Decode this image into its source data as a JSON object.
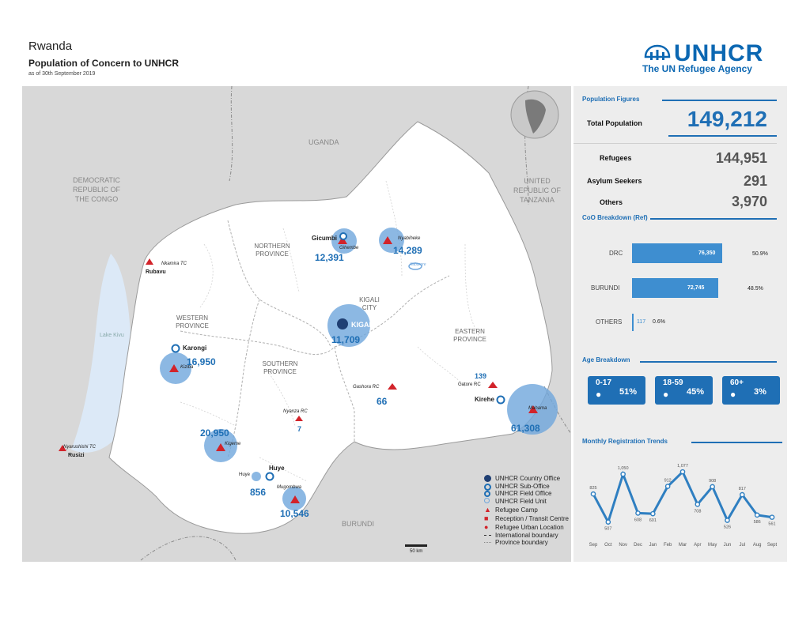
{
  "header": {
    "title": "Rwanda",
    "subtitle": "Population of Concern to UNHCR",
    "date": "as of 30th September 2019"
  },
  "logo": {
    "word": "UNHCR",
    "tagline": "The UN Refugee Agency"
  },
  "colors": {
    "brand": "#0b67b2",
    "accent": "#1f6fb5",
    "circle": "#6fa6dc",
    "camp": "#d2232a",
    "water": "#dce9f7"
  },
  "population_figures": {
    "title": "Population Figures",
    "total_label": "Total Population",
    "total_value": "149,212",
    "rows": [
      {
        "label": "Refugees",
        "value": "144,951"
      },
      {
        "label": "Asylum Seekers",
        "value": "291"
      },
      {
        "label": "Others",
        "value": "3,970"
      }
    ]
  },
  "coo": {
    "title": "CoO Breakdown (Ref)",
    "rows": [
      {
        "label": "DRC",
        "value": "76,350",
        "pct": "50.9%",
        "fraction": 0.509
      },
      {
        "label": "BURUNDI",
        "value": "72,745",
        "pct": "48.5%",
        "fraction": 0.485
      },
      {
        "label": "OTHERS",
        "value": "117",
        "pct": "0.6%",
        "fraction": 0.006
      }
    ]
  },
  "age": {
    "title": "Age Breakdown",
    "groups": [
      {
        "range": "0-17",
        "pct": "51%"
      },
      {
        "range": "18-59",
        "pct": "45%"
      },
      {
        "range": "60+",
        "pct": "3%"
      }
    ]
  },
  "trend": {
    "title": "Monthly Registration Trends"
  },
  "chart_data": {
    "type": "line",
    "title": "Monthly Registration Trends",
    "categories": [
      "Sep",
      "Oct",
      "Nov",
      "Dec",
      "Jan",
      "Feb",
      "Mar",
      "Apr",
      "May",
      "Jun",
      "Jul",
      "Aug",
      "Sept"
    ],
    "values": [
      825,
      507,
      1050,
      608,
      601,
      912,
      1077,
      708,
      908,
      526,
      817,
      586,
      561
    ],
    "labels": [
      "825",
      "507",
      "1,050",
      "608",
      "601",
      "912",
      "1,077",
      "708",
      "908",
      "526",
      "817",
      "586",
      "561"
    ],
    "ylim": [
      450,
      1150
    ],
    "grid": false
  },
  "map": {
    "countries": [
      {
        "name": "UGANDA"
      },
      {
        "name": "DEMOCRATIC REPUBLIC OF THE CONGO"
      },
      {
        "name": "UNITED REPUBLIC OF TANZANIA"
      },
      {
        "name": "BURUNDI"
      }
    ],
    "provinces": [
      {
        "name": "NORTHERN PROVINCE"
      },
      {
        "name": "WESTERN PROVINCE"
      },
      {
        "name": "KIGALI CITY"
      },
      {
        "name": "EASTERN PROVINCE"
      },
      {
        "name": "SOUTHERN PROVINCE"
      }
    ],
    "lake_label": "Lake Kivu",
    "places": [
      {
        "name": "Gicumbi"
      },
      {
        "name": "Gihembe"
      },
      {
        "name": "Nyabiheke"
      },
      {
        "name": "Kigali"
      },
      {
        "name": "Karongi"
      },
      {
        "name": "Kiziba"
      },
      {
        "name": "Rubavu"
      },
      {
        "name": "Nkamira TC"
      },
      {
        "name": "Kirehe"
      },
      {
        "name": "Mahama"
      },
      {
        "name": "Gatore RC"
      },
      {
        "name": "Gashora RC"
      },
      {
        "name": "Nyanza RC"
      },
      {
        "name": "Kigeme"
      },
      {
        "name": "Huye"
      },
      {
        "name": "Huye"
      },
      {
        "name": "Mugombwa"
      },
      {
        "name": "Nyarushishi TC"
      },
      {
        "name": "Rusizi"
      },
      {
        "name": "Kabarore"
      }
    ],
    "values": [
      {
        "label": "12,391"
      },
      {
        "label": "14,289"
      },
      {
        "label": "11,709"
      },
      {
        "label": "16,950"
      },
      {
        "label": "61,308"
      },
      {
        "label": "20,950"
      },
      {
        "label": "10,546"
      },
      {
        "label": "856"
      },
      {
        "label": "66"
      },
      {
        "label": "139"
      },
      {
        "label": "7"
      }
    ],
    "scale": "50 km"
  },
  "legend": [
    {
      "label": "UNHCR Country Office",
      "icon": "country-office-icon"
    },
    {
      "label": "UNHCR Sub-Office",
      "icon": "sub-office-icon"
    },
    {
      "label": "UNHCR Field Office",
      "icon": "field-office-icon"
    },
    {
      "label": "UNHCR Field Unit",
      "icon": "field-unit-icon"
    },
    {
      "label": "Refugee Camp",
      "icon": "refugee-camp-icon"
    },
    {
      "label": "Reception / Transit Centre",
      "icon": "reception-centre-icon"
    },
    {
      "label": "Refugee Urban Location",
      "icon": "urban-location-icon"
    },
    {
      "label": "International boundary",
      "icon": "international-boundary-icon"
    },
    {
      "label": "Province boundary",
      "icon": "province-boundary-icon"
    }
  ]
}
